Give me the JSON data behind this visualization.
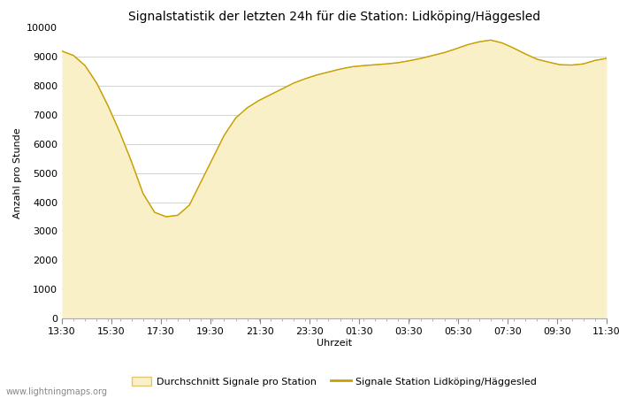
{
  "title": "Signalstatistik der letzten 24h für die Station: Lidköping/Häggesled",
  "xlabel": "Uhrzeit",
  "ylabel": "Anzahl pro Stunde",
  "ylim": [
    0,
    10000
  ],
  "yticks": [
    0,
    1000,
    2000,
    3000,
    4000,
    5000,
    6000,
    7000,
    8000,
    9000,
    10000
  ],
  "xtick_labels": [
    "13:30",
    "15:30",
    "17:30",
    "19:30",
    "21:30",
    "23:30",
    "01:30",
    "03:30",
    "05:30",
    "07:30",
    "09:30",
    "11:30"
  ],
  "fill_color": "#FAF0C8",
  "fill_edge_color": "#E0C870",
  "line_color": "#C8A000",
  "bg_color": "#FFFFFF",
  "grid_color": "#CCCCCC",
  "watermark": "www.lightningmaps.org",
  "legend_fill_label": "Durchschnitt Signale pro Station",
  "legend_line_label": "Signale Station Lidköping/Häggesled",
  "title_fontsize": 10,
  "axis_fontsize": 8,
  "tick_fontsize": 8,
  "avg_y": [
    9200,
    9050,
    8700,
    8100,
    7300,
    6400,
    5400,
    4300,
    3650,
    3500,
    3550,
    3900,
    4700,
    5500,
    6300,
    6900,
    7250,
    7500,
    7700,
    7900,
    8100,
    8250,
    8380,
    8480,
    8580,
    8660,
    8700,
    8730,
    8760,
    8800,
    8870,
    8950,
    9050,
    9150,
    9280,
    9420,
    9520,
    9580,
    9480,
    9300,
    9100,
    8920,
    8820,
    8730,
    8720,
    8760,
    8880,
    8950
  ]
}
